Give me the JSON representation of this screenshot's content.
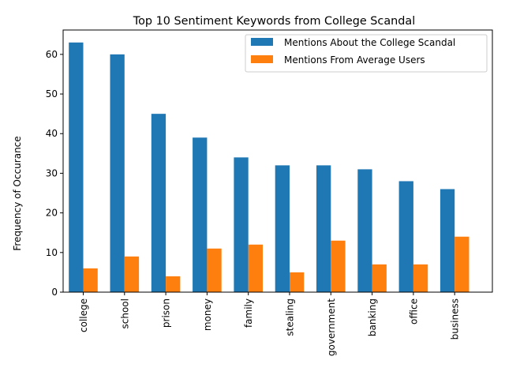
{
  "chart_data": {
    "type": "bar",
    "title": "Top 10 Sentiment Keywords from College Scandal",
    "xlabel": "",
    "ylabel": "Frequency of Occurance",
    "categories": [
      "college",
      "school",
      "prison",
      "money",
      "family",
      "stealing",
      "government",
      "banking",
      "office",
      "business"
    ],
    "series": [
      {
        "name": "Mentions About the College Scandal",
        "color": "#1f77b4",
        "values": [
          63,
          60,
          45,
          39,
          34,
          32,
          32,
          31,
          28,
          26
        ]
      },
      {
        "name": "Mentions From Average Users",
        "color": "#ff7f0e",
        "values": [
          6,
          9,
          4,
          11,
          12,
          5,
          13,
          7,
          7,
          14
        ]
      }
    ],
    "ylim": [
      0,
      66.15
    ],
    "yticks": [
      0,
      10,
      20,
      30,
      40,
      50,
      60
    ],
    "grid": false,
    "legend_position": "top-right"
  }
}
